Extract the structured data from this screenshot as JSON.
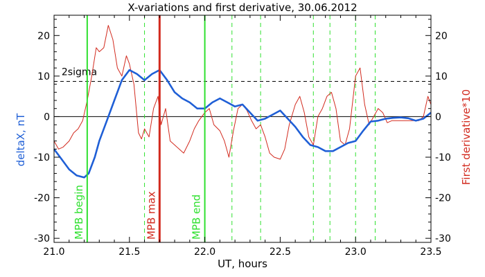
{
  "chart_data": {
    "type": "line",
    "title": "X-variations and first derivative, 30.06.2012",
    "xlabel": "UT, hours",
    "ylabel_left": "deltaX, nT",
    "ylabel_right": "First derivative*10",
    "xlim": [
      21.0,
      23.5
    ],
    "ylim": [
      -31,
      25
    ],
    "x_ticks": [
      "21.0",
      "21.5",
      "22.0",
      "22.5",
      "23.0",
      "23.5"
    ],
    "y_ticks": [
      "-30",
      "-20",
      "-10",
      "0",
      "10",
      "20"
    ],
    "colors": {
      "deltaX": "#1f5fd6",
      "derivative": "#d22a1e",
      "mpb_boundary": "#2ee02e",
      "mpb_max": "#d22a1e",
      "dashed_green": "#2ee02e",
      "sigma": "#000000",
      "left_label": "#1f5fd6",
      "right_label": "#d22a1e"
    },
    "sigma_level": 8.7,
    "sigma_label": "2sigma",
    "vertical_markers": [
      {
        "x": 21.22,
        "label": "MPB begin",
        "kind": "boundary"
      },
      {
        "x": 21.7,
        "label": "MPB max",
        "kind": "max"
      },
      {
        "x": 22.0,
        "label": "MPB end",
        "kind": "boundary"
      }
    ],
    "dashed_markers": [
      21.6,
      22.18,
      22.37,
      22.72,
      22.83,
      23.0,
      23.13
    ],
    "series": [
      {
        "name": "deltaX",
        "x": [
          21.0,
          21.05,
          21.1,
          21.15,
          21.2,
          21.23,
          21.27,
          21.3,
          21.35,
          21.4,
          21.45,
          21.5,
          21.55,
          21.6,
          21.65,
          21.7,
          21.75,
          21.8,
          21.85,
          21.9,
          21.95,
          22.0,
          22.05,
          22.1,
          22.15,
          22.2,
          22.25,
          22.3,
          22.35,
          22.4,
          22.45,
          22.5,
          22.55,
          22.6,
          22.65,
          22.7,
          22.75,
          22.8,
          22.85,
          22.9,
          22.95,
          23.0,
          23.05,
          23.1,
          23.15,
          23.2,
          23.25,
          23.3,
          23.35,
          23.4,
          23.45,
          23.5
        ],
        "y": [
          -8,
          -10.5,
          -13,
          -14.5,
          -15,
          -14,
          -10,
          -6,
          -1,
          4,
          9,
          11.5,
          10.5,
          9,
          10.5,
          11.5,
          9,
          6,
          4.5,
          3.5,
          2,
          2,
          3.5,
          4.5,
          3.5,
          2.5,
          3,
          1,
          -1,
          -0.5,
          0.5,
          1.5,
          -0.5,
          -2.5,
          -5,
          -7,
          -7.5,
          -8.5,
          -8.5,
          -7.5,
          -6.5,
          -6,
          -3.5,
          -1.2,
          -1,
          -0.5,
          -0.3,
          -0.2,
          -0.4,
          -1,
          -0.5,
          1
        ]
      },
      {
        "name": "First derivative*10",
        "x": [
          21.0,
          21.03,
          21.06,
          21.1,
          21.13,
          21.16,
          21.19,
          21.22,
          21.25,
          21.28,
          21.3,
          21.33,
          21.36,
          21.39,
          21.42,
          21.45,
          21.48,
          21.5,
          21.53,
          21.56,
          21.58,
          21.6,
          21.63,
          21.66,
          21.69,
          21.71,
          21.74,
          21.77,
          21.8,
          21.83,
          21.86,
          21.9,
          21.93,
          21.96,
          22.0,
          22.03,
          22.06,
          22.1,
          22.13,
          22.16,
          22.19,
          22.22,
          22.25,
          22.28,
          22.31,
          22.34,
          22.37,
          22.4,
          22.43,
          22.46,
          22.5,
          22.53,
          22.56,
          22.6,
          22.63,
          22.66,
          22.69,
          22.72,
          22.75,
          22.78,
          22.81,
          22.84,
          22.87,
          22.9,
          22.93,
          22.96,
          23.0,
          23.03,
          23.06,
          23.09,
          23.12,
          23.15,
          23.18,
          23.21,
          23.24,
          23.27,
          23.3,
          23.33,
          23.36,
          23.39,
          23.42,
          23.45,
          23.48,
          23.5
        ],
        "y": [
          -6,
          -8,
          -7.5,
          -6,
          -4,
          -3,
          -1,
          4,
          10,
          17,
          16,
          17,
          22.5,
          19,
          12,
          10,
          15,
          13,
          8,
          -4,
          -5.5,
          -3,
          -5,
          2,
          5,
          -2,
          2,
          -6,
          -7,
          -8,
          -9,
          -6,
          -3,
          -1,
          1,
          2,
          -2,
          -3.5,
          -6,
          -10,
          -3.5,
          2,
          3,
          1.5,
          -1,
          -3,
          -2,
          -5,
          -9,
          -10,
          -10.5,
          -8,
          -2,
          3,
          5,
          1,
          -5,
          -7,
          0,
          2,
          5,
          6,
          2,
          -6,
          -7,
          -3,
          10,
          12,
          3,
          -2,
          0,
          2,
          1,
          -1.5,
          -1,
          -1,
          -1,
          -1,
          -1,
          -1,
          -1,
          0,
          5,
          3
        ]
      }
    ]
  }
}
